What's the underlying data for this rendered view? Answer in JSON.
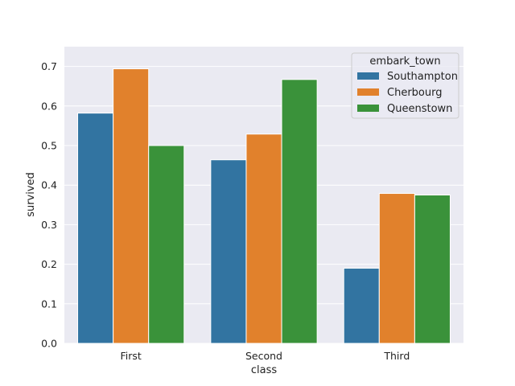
{
  "chart_data": {
    "type": "bar",
    "categories": [
      "First",
      "Second",
      "Third"
    ],
    "series": [
      {
        "name": "Southampton",
        "color": "#3274a1",
        "values": [
          0.582,
          0.464,
          0.19
        ]
      },
      {
        "name": "Cherbourg",
        "color": "#e1812c",
        "values": [
          0.694,
          0.529,
          0.379
        ]
      },
      {
        "name": "Queenstown",
        "color": "#3a923a",
        "values": [
          0.5,
          0.667,
          0.375
        ]
      }
    ],
    "xlabel": "class",
    "ylabel": "survived",
    "ylim": [
      0,
      0.75
    ],
    "yticks": [
      "0.0",
      "0.1",
      "0.2",
      "0.3",
      "0.4",
      "0.5",
      "0.6",
      "0.7"
    ],
    "legend": {
      "title": "embark_town",
      "placement": "top-right"
    },
    "grid": true,
    "background": "#eaeaf2"
  }
}
